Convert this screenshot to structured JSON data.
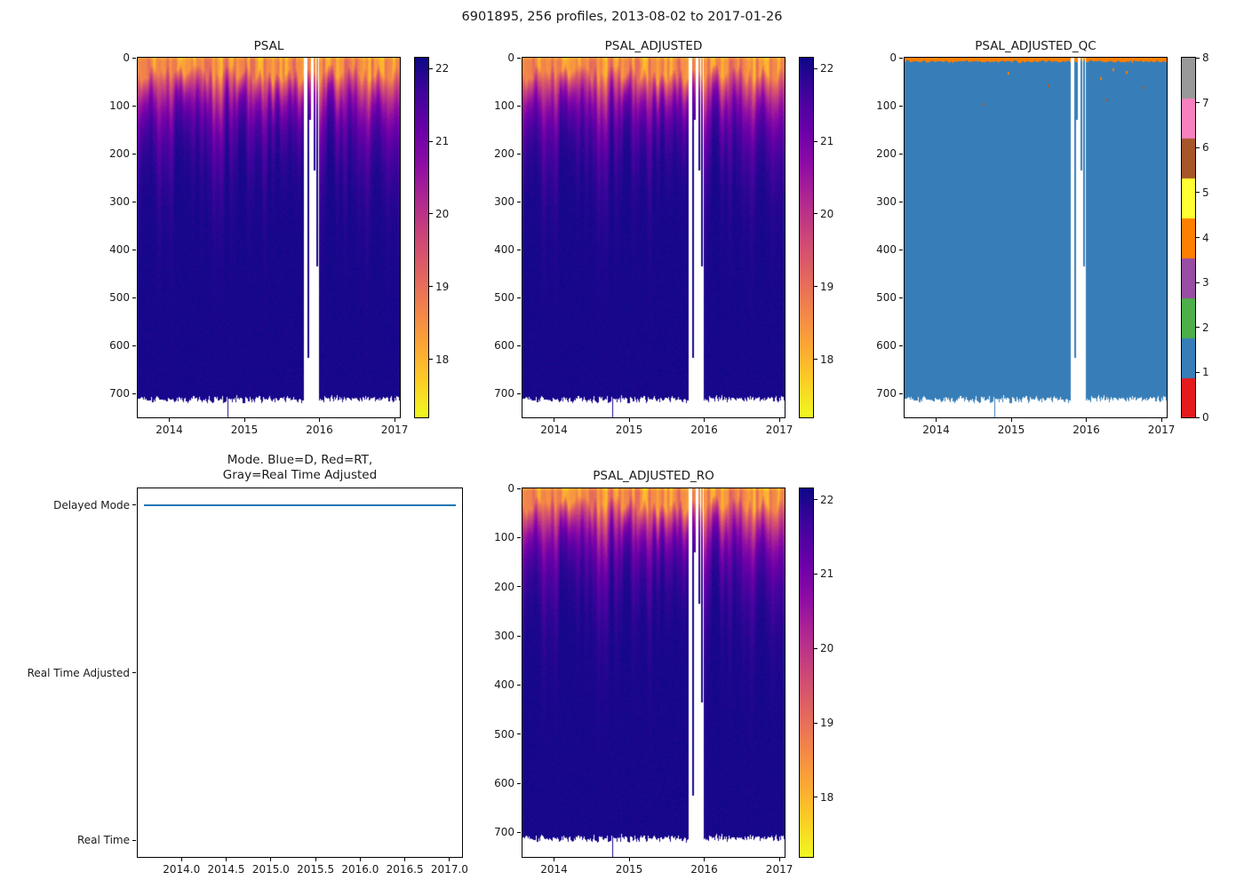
{
  "figure": {
    "title": "6901895, 256 profiles, 2013-08-02 to 2017-01-26",
    "platform_id": "6901895",
    "profiles_count": "256 profiles",
    "date_start": "2013-08-02",
    "date_end": "2017-01-26",
    "background": "#ffffff"
  },
  "palette": {
    "plasma_stops": [
      "#0d0887",
      "#41049d",
      "#6a00a8",
      "#8f0da4",
      "#b12a90",
      "#cc4778",
      "#e16462",
      "#f2844b",
      "#fca636",
      "#fcce25",
      "#f0f921"
    ],
    "qc_colors": [
      "#e41a1c",
      "#377eb8",
      "#4daf4a",
      "#984ea3",
      "#ff7f00",
      "#ffff33",
      "#a65628",
      "#f781bf",
      "#999999"
    ],
    "mode_line_color": "#1f77b4",
    "no_data_color": "#ffffff",
    "text_color": "#1a1a1a"
  },
  "chart_data": [
    {
      "id": "psal",
      "type": "heatmap",
      "title": "PSAL",
      "x": {
        "min": 2013.58,
        "max": 2017.07,
        "ticks": [
          {
            "v": 2014,
            "label": "2014"
          },
          {
            "v": 2015,
            "label": "2015"
          },
          {
            "v": 2016,
            "label": "2016"
          },
          {
            "v": 2017,
            "label": "2017"
          }
        ]
      },
      "y": {
        "min": 0,
        "max": 750,
        "direction": "down",
        "ticks": [
          {
            "v": 0,
            "label": "0"
          },
          {
            "v": 100,
            "label": "100"
          },
          {
            "v": 200,
            "label": "200"
          },
          {
            "v": 300,
            "label": "300"
          },
          {
            "v": 400,
            "label": "400"
          },
          {
            "v": 500,
            "label": "500"
          },
          {
            "v": 600,
            "label": "600"
          },
          {
            "v": 700,
            "label": "700"
          }
        ]
      },
      "color": {
        "colormap": "plasma_r",
        "vmin": 17.2,
        "vmax": 22.15,
        "bar_ticks": [
          {
            "v": 18,
            "label": "18"
          },
          {
            "v": 19,
            "label": "19"
          },
          {
            "v": 20,
            "label": "20"
          },
          {
            "v": 21,
            "label": "21"
          },
          {
            "v": 22,
            "label": "22"
          }
        ]
      },
      "field": {
        "surface_salinity_range": [
          17.85,
          19.3
        ],
        "deep_salinity": 22.05,
        "mixed_layer_depth_range": [
          10,
          55
        ],
        "halocline_scale_range": [
          40,
          120
        ],
        "max_profile_depth": 712,
        "deep_spike": {
          "time": 2014.78,
          "depth": 752
        },
        "data_gaps": [
          {
            "from": 2015.795,
            "to": 2015.995
          }
        ],
        "partial_columns": [
          {
            "time": 2015.852,
            "depth": 625
          },
          {
            "time": 2015.878,
            "depth": 130
          },
          {
            "time": 2015.935,
            "depth": 235
          },
          {
            "time": 2015.972,
            "depth": 435
          }
        ]
      }
    },
    {
      "id": "psal_adjusted",
      "type": "heatmap",
      "title": "PSAL_ADJUSTED",
      "x": {
        "min": 2013.58,
        "max": 2017.07,
        "ticks": [
          {
            "v": 2014,
            "label": "2014"
          },
          {
            "v": 2015,
            "label": "2015"
          },
          {
            "v": 2016,
            "label": "2016"
          },
          {
            "v": 2017,
            "label": "2017"
          }
        ]
      },
      "y": {
        "min": 0,
        "max": 750,
        "direction": "down",
        "ticks": [
          {
            "v": 0,
            "label": "0"
          },
          {
            "v": 100,
            "label": "100"
          },
          {
            "v": 200,
            "label": "200"
          },
          {
            "v": 300,
            "label": "300"
          },
          {
            "v": 400,
            "label": "400"
          },
          {
            "v": 500,
            "label": "500"
          },
          {
            "v": 600,
            "label": "600"
          },
          {
            "v": 700,
            "label": "700"
          }
        ]
      },
      "color": {
        "colormap": "plasma_r",
        "vmin": 17.2,
        "vmax": 22.15,
        "bar_ticks": [
          {
            "v": 18,
            "label": "18"
          },
          {
            "v": 19,
            "label": "19"
          },
          {
            "v": 20,
            "label": "20"
          },
          {
            "v": 21,
            "label": "21"
          },
          {
            "v": 22,
            "label": "22"
          }
        ]
      },
      "field": {
        "surface_salinity_range": [
          17.85,
          19.3
        ],
        "deep_salinity": 22.05,
        "mixed_layer_depth_range": [
          10,
          55
        ],
        "halocline_scale_range": [
          40,
          120
        ],
        "max_profile_depth": 712,
        "deep_spike": {
          "time": 2014.78,
          "depth": 752
        },
        "data_gaps": [
          {
            "from": 2015.795,
            "to": 2015.995
          }
        ],
        "partial_columns": [
          {
            "time": 2015.852,
            "depth": 625
          },
          {
            "time": 2015.878,
            "depth": 130
          },
          {
            "time": 2015.935,
            "depth": 235
          },
          {
            "time": 2015.972,
            "depth": 435
          }
        ]
      }
    },
    {
      "id": "psal_adjusted_qc",
      "type": "heatmap_qc",
      "title": "PSAL_ADJUSTED_QC",
      "x": {
        "min": 2013.58,
        "max": 2017.07,
        "ticks": [
          {
            "v": 2014,
            "label": "2014"
          },
          {
            "v": 2015,
            "label": "2015"
          },
          {
            "v": 2016,
            "label": "2016"
          },
          {
            "v": 2017,
            "label": "2017"
          }
        ]
      },
      "y": {
        "min": 0,
        "max": 750,
        "direction": "down",
        "ticks": [
          {
            "v": 0,
            "label": "0"
          },
          {
            "v": 100,
            "label": "100"
          },
          {
            "v": 200,
            "label": "200"
          },
          {
            "v": 300,
            "label": "300"
          },
          {
            "v": 400,
            "label": "400"
          },
          {
            "v": 500,
            "label": "500"
          },
          {
            "v": 600,
            "label": "600"
          },
          {
            "v": 700,
            "label": "700"
          }
        ]
      },
      "color": {
        "colormap": "qc_flags",
        "flag_values": [
          0,
          1,
          2,
          3,
          4,
          5,
          6,
          7,
          8
        ],
        "bar_ticks": [
          {
            "v": 0,
            "label": "0"
          },
          {
            "v": 1,
            "label": "1"
          },
          {
            "v": 2,
            "label": "2"
          },
          {
            "v": 3,
            "label": "3"
          },
          {
            "v": 4,
            "label": "4"
          },
          {
            "v": 5,
            "label": "5"
          },
          {
            "v": 6,
            "label": "6"
          },
          {
            "v": 7,
            "label": "7"
          },
          {
            "v": 8,
            "label": "8"
          }
        ]
      },
      "field": {
        "dominant_flag": 1,
        "surface_strip_flag": 4,
        "surface_strip_depth": 8,
        "max_profile_depth": 712,
        "deep_spike": {
          "time": 2014.78,
          "depth": 752
        },
        "data_gaps": [
          {
            "from": 2015.795,
            "to": 2015.995
          }
        ],
        "partial_columns": [
          {
            "time": 2015.852,
            "depth": 625
          },
          {
            "time": 2015.878,
            "depth": 130
          },
          {
            "time": 2015.935,
            "depth": 235
          },
          {
            "time": 2015.972,
            "depth": 435
          }
        ],
        "specks": [
          {
            "time": 2014.62,
            "depth": 95,
            "flag": 6
          },
          {
            "time": 2014.95,
            "depth": 30,
            "flag": 4
          },
          {
            "time": 2015.48,
            "depth": 55,
            "flag": 6
          },
          {
            "time": 2016.18,
            "depth": 40,
            "flag": 4
          },
          {
            "time": 2016.27,
            "depth": 85,
            "flag": 6
          },
          {
            "time": 2016.35,
            "depth": 22,
            "flag": 4
          },
          {
            "time": 2016.52,
            "depth": 28,
            "flag": 4
          },
          {
            "time": 2016.75,
            "depth": 60,
            "flag": 6
          }
        ]
      }
    },
    {
      "id": "mode",
      "type": "line",
      "title": "Mode. Blue=D, Red=RT, Gray=Real Time Adjusted",
      "title_lines": [
        "Mode. Blue=D, Red=RT,",
        "Gray=Real Time Adjusted"
      ],
      "x": {
        "min": 2013.51,
        "max": 2017.14,
        "ticks": [
          {
            "v": 2014.0,
            "label": "2014.0"
          },
          {
            "v": 2014.5,
            "label": "2014.5"
          },
          {
            "v": 2015.0,
            "label": "2015.0"
          },
          {
            "v": 2015.5,
            "label": "2015.5"
          },
          {
            "v": 2016.0,
            "label": "2016.0"
          },
          {
            "v": 2016.5,
            "label": "2016.5"
          },
          {
            "v": 2017.0,
            "label": "2017.0"
          }
        ]
      },
      "y": {
        "pad": 0.1,
        "categories": [
          {
            "v": 0,
            "label": "Real Time"
          },
          {
            "v": 1,
            "label": "Real Time Adjusted"
          },
          {
            "v": 2,
            "label": "Delayed Mode"
          }
        ]
      },
      "series": [
        {
          "name": "mode",
          "legend": "Blue=D",
          "y_value": 2,
          "y_label": "Delayed Mode",
          "x_from": 2013.58,
          "x_to": 2017.07,
          "color": "#1f77b4"
        }
      ]
    },
    {
      "id": "psal_adjusted_ro",
      "type": "heatmap",
      "title": "PSAL_ADJUSTED_RO",
      "x": {
        "min": 2013.58,
        "max": 2017.07,
        "ticks": [
          {
            "v": 2014,
            "label": "2014"
          },
          {
            "v": 2015,
            "label": "2015"
          },
          {
            "v": 2016,
            "label": "2016"
          },
          {
            "v": 2017,
            "label": "2017"
          }
        ]
      },
      "y": {
        "min": 0,
        "max": 750,
        "direction": "down",
        "ticks": [
          {
            "v": 0,
            "label": "0"
          },
          {
            "v": 100,
            "label": "100"
          },
          {
            "v": 200,
            "label": "200"
          },
          {
            "v": 300,
            "label": "300"
          },
          {
            "v": 400,
            "label": "400"
          },
          {
            "v": 500,
            "label": "500"
          },
          {
            "v": 600,
            "label": "600"
          },
          {
            "v": 700,
            "label": "700"
          }
        ]
      },
      "color": {
        "colormap": "plasma_r",
        "vmin": 17.2,
        "vmax": 22.15,
        "bar_ticks": [
          {
            "v": 18,
            "label": "18"
          },
          {
            "v": 19,
            "label": "19"
          },
          {
            "v": 20,
            "label": "20"
          },
          {
            "v": 21,
            "label": "21"
          },
          {
            "v": 22,
            "label": "22"
          }
        ]
      },
      "field": {
        "surface_salinity_range": [
          17.85,
          19.3
        ],
        "deep_salinity": 22.05,
        "mixed_layer_depth_range": [
          10,
          55
        ],
        "halocline_scale_range": [
          40,
          120
        ],
        "max_profile_depth": 712,
        "deep_spike": {
          "time": 2014.78,
          "depth": 752
        },
        "data_gaps": [
          {
            "from": 2015.795,
            "to": 2015.995
          }
        ],
        "partial_columns": [
          {
            "time": 2015.852,
            "depth": 625
          },
          {
            "time": 2015.878,
            "depth": 130
          },
          {
            "time": 2015.935,
            "depth": 235
          },
          {
            "time": 2015.972,
            "depth": 435
          }
        ]
      }
    }
  ]
}
